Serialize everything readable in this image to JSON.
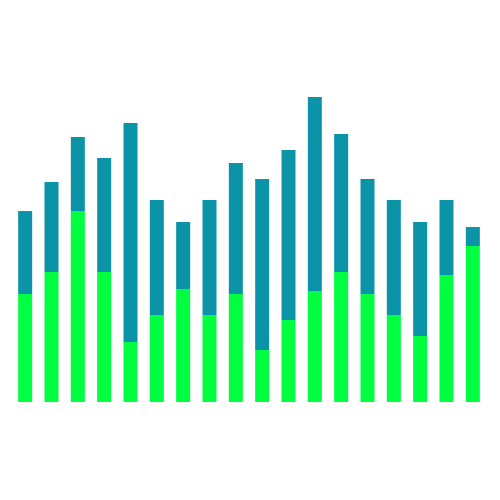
{
  "chart_data": {
    "type": "stacked_bar",
    "series": [
      {
        "color": "#00ff40",
        "values": [
          108,
          130,
          191,
          130,
          60,
          87,
          113,
          87,
          108,
          52,
          82,
          111,
          130,
          108,
          87,
          66,
          127,
          156
        ]
      },
      {
        "color": "#0b94a8",
        "values": [
          83,
          90,
          74,
          114,
          219,
          115,
          67,
          115,
          131,
          171,
          170,
          194,
          138,
          115,
          115,
          114,
          75,
          19
        ]
      }
    ],
    "ylim": [
      0,
      320
    ]
  }
}
